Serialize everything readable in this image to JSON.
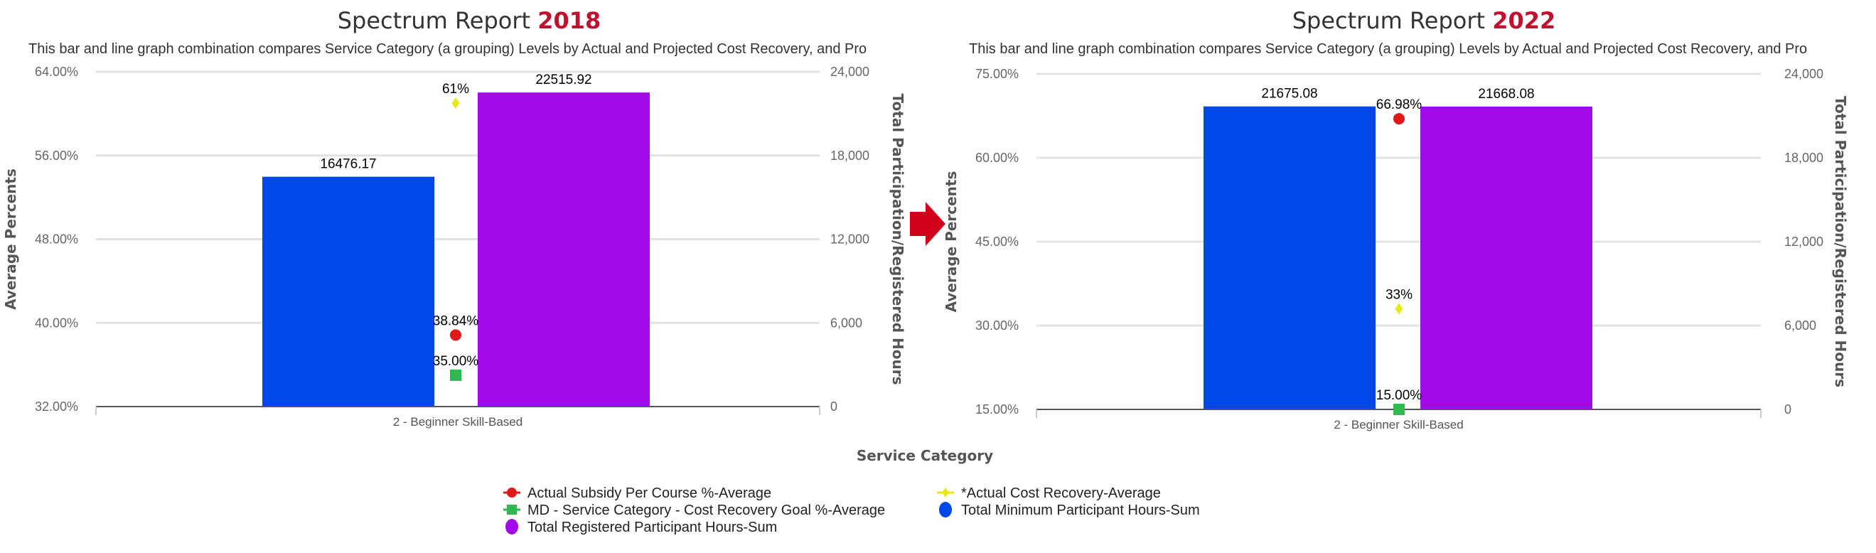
{
  "chart_data": [
    {
      "type": "bar+line",
      "title": "Spectrum Report",
      "title_year": "2018",
      "subtitle": "This bar and line graph combination compares Service Category (a grouping) Levels by Actual and Projected Cost Recovery, and Pro",
      "categories": [
        "2 - Beginner Skill-Based"
      ],
      "ylabel_left": "Average Percents",
      "ylabel_right": "Total Participation/Registered Hours",
      "ylim_left": [
        32,
        64
      ],
      "yticks_left": [
        "32.00%",
        "40.00%",
        "48.00%",
        "56.00%",
        "64.00%"
      ],
      "ylim_right": [
        0,
        24000
      ],
      "yticks_right": [
        "0",
        "6,000",
        "12,000",
        "18,000",
        "24,000"
      ],
      "bars": [
        {
          "name": "Total Minimum Participant Hours-Sum",
          "value": 16476.17,
          "label": "16476.17",
          "color": "#0047e8"
        },
        {
          "name": "Total Registered Participant Hours-Sum",
          "value": 22515.92,
          "label": "22515.92",
          "color": "#a20ae8"
        }
      ],
      "points": [
        {
          "name": "*Actual Cost Recovery-Average",
          "value": 61,
          "label": "61%",
          "color": "#e8e81a",
          "marker": "diamond"
        },
        {
          "name": "Actual Subsidy Per Course %-Average",
          "value": 38.84,
          "label": "38.84%",
          "color": "#e01818",
          "marker": "circle"
        },
        {
          "name": "MD - Service Category - Cost Recovery Goal %-Average",
          "value": 35.0,
          "label": "35.00%",
          "color": "#2fb84f",
          "marker": "square"
        }
      ],
      "grid": true
    },
    {
      "type": "bar+line",
      "title": "Spectrum Report",
      "title_year": "2022",
      "subtitle": "This bar and line graph combination compares Service Category (a grouping) Levels by Actual and Projected Cost Recovery, and Pro",
      "categories": [
        "2 - Beginner Skill-Based"
      ],
      "ylabel_left": "Average Percents",
      "ylabel_right": "Total Participation/Registered Hours",
      "ylim_left": [
        15,
        75
      ],
      "yticks_left": [
        "15.00%",
        "30.00%",
        "45.00%",
        "60.00%",
        "75.00%"
      ],
      "ylim_right": [
        0,
        24000
      ],
      "yticks_right": [
        "0",
        "6,000",
        "12,000",
        "18,000",
        "24,000"
      ],
      "bars": [
        {
          "name": "Total Minimum Participant Hours-Sum",
          "value": 21675.08,
          "label": "21675.08",
          "color": "#0047e8"
        },
        {
          "name": "Total Registered Participant Hours-Sum",
          "value": 21668.08,
          "label": "21668.08",
          "color": "#a20ae8"
        }
      ],
      "points": [
        {
          "name": "Actual Subsidy Per Course %-Average",
          "value": 66.98,
          "label": "66.98%",
          "color": "#e01818",
          "marker": "circle"
        },
        {
          "name": "*Actual Cost Recovery-Average",
          "value": 33,
          "label": "33%",
          "color": "#e8e81a",
          "marker": "diamond"
        },
        {
          "name": "MD - Service Category - Cost Recovery Goal %-Average",
          "value": 15.0,
          "label": "15.00%",
          "color": "#2fb84f",
          "marker": "square"
        }
      ],
      "grid": true
    }
  ],
  "xlabel": "Service Category",
  "legend": {
    "placement": "bottom",
    "items": [
      {
        "label": "Actual Subsidy Per Course %-Average",
        "color": "#e01818",
        "marker": "line-circle"
      },
      {
        "label": "*Actual Cost Recovery-Average",
        "color": "#e8e81a",
        "marker": "line-diamond"
      },
      {
        "label": "MD - Service Category - Cost Recovery Goal %-Average",
        "color": "#2fb84f",
        "marker": "line-square"
      },
      {
        "label": "Total Minimum Participant Hours-Sum",
        "color": "#0047e8",
        "marker": "circle"
      },
      {
        "label": "Total Registered Participant Hours-Sum",
        "color": "#a20ae8",
        "marker": "circle"
      }
    ]
  },
  "arrow": {
    "icon": "right-arrow-icon",
    "color": "#d0021b"
  }
}
